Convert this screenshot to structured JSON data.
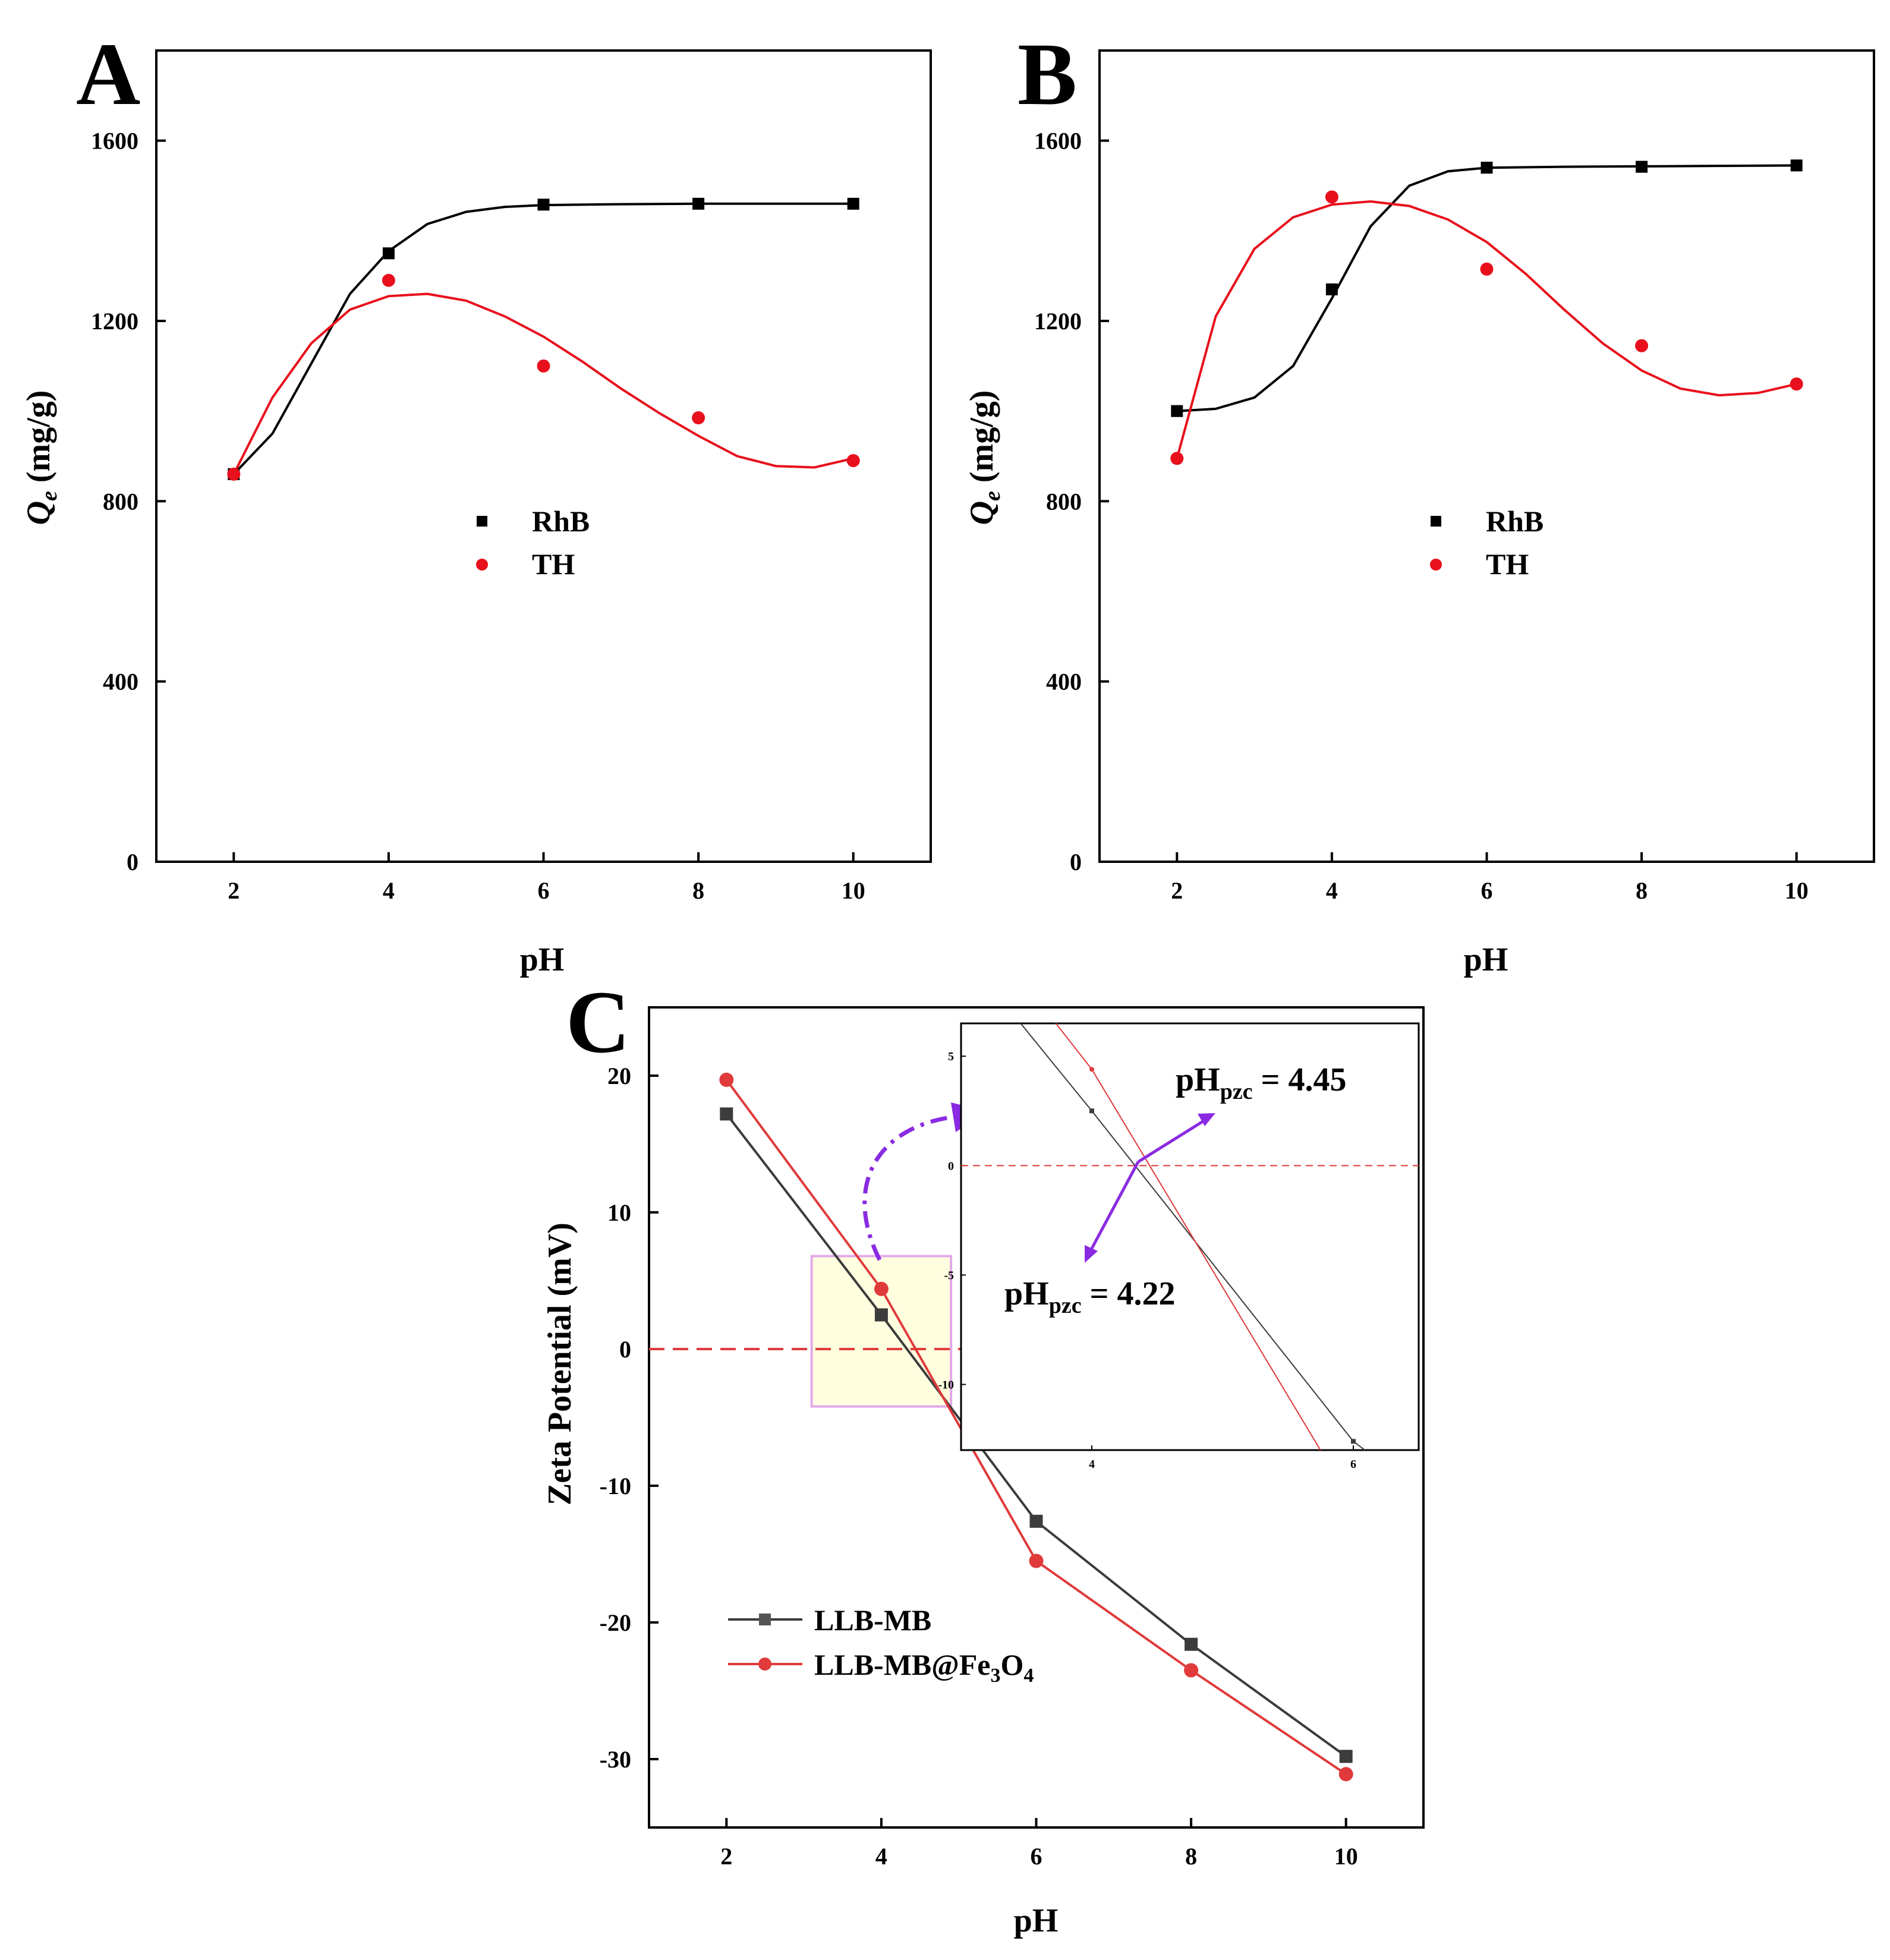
{
  "chart_data": [
    {
      "id": "A",
      "panel_label": "A",
      "type": "scatter",
      "xlabel": "pH",
      "ylabel_main": "Q",
      "ylabel_sub": "e",
      "ylabel_unit": " (mg/g)",
      "xlim": [
        1,
        11
      ],
      "ylim": [
        0,
        1800
      ],
      "xticks": [
        2,
        4,
        6,
        8,
        10
      ],
      "yticks": [
        0,
        400,
        800,
        1200,
        1600
      ],
      "legend_position": "center",
      "series": [
        {
          "name": "RhB",
          "marker": "square",
          "color": "#000000",
          "x": [
            2,
            4,
            6,
            8,
            10
          ],
          "y": [
            860,
            1350,
            1458,
            1460,
            1460
          ]
        },
        {
          "name": "TH",
          "marker": "circle",
          "color": "#e8101c",
          "x": [
            2,
            4,
            6,
            8,
            10
          ],
          "y": [
            860,
            1290,
            1100,
            985,
            890
          ]
        }
      ],
      "fit_curves": [
        {
          "series": "RhB",
          "color": "#000000",
          "x": [
            2,
            2.5,
            3,
            3.5,
            4,
            4.5,
            5,
            5.5,
            6,
            7,
            8,
            9,
            10
          ],
          "y": [
            860,
            950,
            1105,
            1260,
            1355,
            1415,
            1442,
            1453,
            1457,
            1459,
            1460,
            1460,
            1460
          ]
        },
        {
          "series": "TH",
          "color": "#e8101c",
          "x": [
            2,
            2.5,
            3,
            3.5,
            4,
            4.5,
            5,
            5.5,
            6,
            6.5,
            7,
            7.5,
            8,
            8.5,
            9,
            9.5,
            10
          ],
          "y": [
            860,
            1030,
            1150,
            1225,
            1255,
            1260,
            1245,
            1210,
            1165,
            1110,
            1050,
            995,
            945,
            900,
            878,
            875,
            895
          ]
        }
      ]
    },
    {
      "id": "B",
      "panel_label": "B",
      "type": "scatter",
      "xlabel": "pH",
      "ylabel_main": "Q",
      "ylabel_sub": "e",
      "ylabel_unit": " (mg/g)",
      "xlim": [
        1,
        11
      ],
      "ylim": [
        0,
        1800
      ],
      "xticks": [
        2,
        4,
        6,
        8,
        10
      ],
      "yticks": [
        0,
        400,
        800,
        1200,
        1600
      ],
      "legend_position": "center",
      "series": [
        {
          "name": "RhB",
          "marker": "square",
          "color": "#000000",
          "x": [
            2,
            4,
            6,
            8,
            10
          ],
          "y": [
            1000,
            1270,
            1540,
            1542,
            1545
          ]
        },
        {
          "name": "TH",
          "marker": "circle",
          "color": "#e8101c",
          "x": [
            2,
            4,
            6,
            8,
            10
          ],
          "y": [
            895,
            1475,
            1315,
            1145,
            1060
          ]
        }
      ],
      "fit_curves": [
        {
          "series": "RhB",
          "color": "#000000",
          "x": [
            2,
            2.5,
            3,
            3.5,
            4,
            4.5,
            5,
            5.5,
            6,
            7,
            8,
            9,
            10
          ],
          "y": [
            1000,
            1005,
            1030,
            1100,
            1250,
            1410,
            1500,
            1532,
            1540,
            1542,
            1543,
            1544,
            1545
          ]
        },
        {
          "series": "TH",
          "color": "#e8101c",
          "x": [
            2,
            2.5,
            3,
            3.5,
            4,
            4.5,
            5,
            5.5,
            6,
            6.5,
            7,
            7.5,
            8,
            8.5,
            9,
            9.5,
            10
          ],
          "y": [
            895,
            1210,
            1360,
            1430,
            1458,
            1465,
            1455,
            1425,
            1375,
            1305,
            1225,
            1150,
            1090,
            1050,
            1035,
            1040,
            1060
          ]
        }
      ]
    },
    {
      "id": "C",
      "panel_label": "C",
      "type": "line",
      "xlabel": "pH",
      "ylabel": "Zeta Potential (mV)",
      "xlim": [
        1,
        11
      ],
      "ylim": [
        -35,
        25
      ],
      "xticks": [
        2,
        4,
        6,
        8,
        10
      ],
      "yticks": [
        -30,
        -20,
        -10,
        0,
        10,
        20
      ],
      "legend_position": "bottom-left",
      "zero_line": true,
      "highlight_region": {
        "x": [
          3.1,
          4.9
        ],
        "y": [
          -4.2,
          6.8
        ]
      },
      "series": [
        {
          "name": "LLB-MB",
          "label_sub_parts": [],
          "marker": "square",
          "color": "#3c3c3c",
          "x": [
            2,
            4,
            6,
            8,
            10
          ],
          "y": [
            17.2,
            2.5,
            -12.6,
            -21.6,
            -29.8
          ]
        },
        {
          "name": "LLB-MB@Fe3O4",
          "marker": "circle",
          "color": "#e03a3a",
          "x": [
            2,
            4,
            6,
            8,
            10
          ],
          "y": [
            19.7,
            4.4,
            -15.5,
            -23.5,
            -31.1
          ]
        }
      ],
      "legend_labels": {
        "s1": "LLB-MB",
        "s2_a": "LLB-MB@Fe",
        "s2_sub1": "3",
        "s2_b": "O",
        "s2_sub2": "4"
      },
      "inset": {
        "xlim": [
          3.0,
          6.5
        ],
        "ylim": [
          -13,
          6.5
        ],
        "xticks": [
          4,
          6
        ],
        "yticks": [
          -10,
          -5,
          0,
          5
        ],
        "annotations": [
          {
            "main": "pH",
            "sub": "pzc",
            "rest": " = 4.45"
          },
          {
            "main": "pH",
            "sub": "pzc",
            "rest": " = 4.22"
          }
        ],
        "pzc_values": [
          4.45,
          4.22
        ]
      }
    }
  ]
}
